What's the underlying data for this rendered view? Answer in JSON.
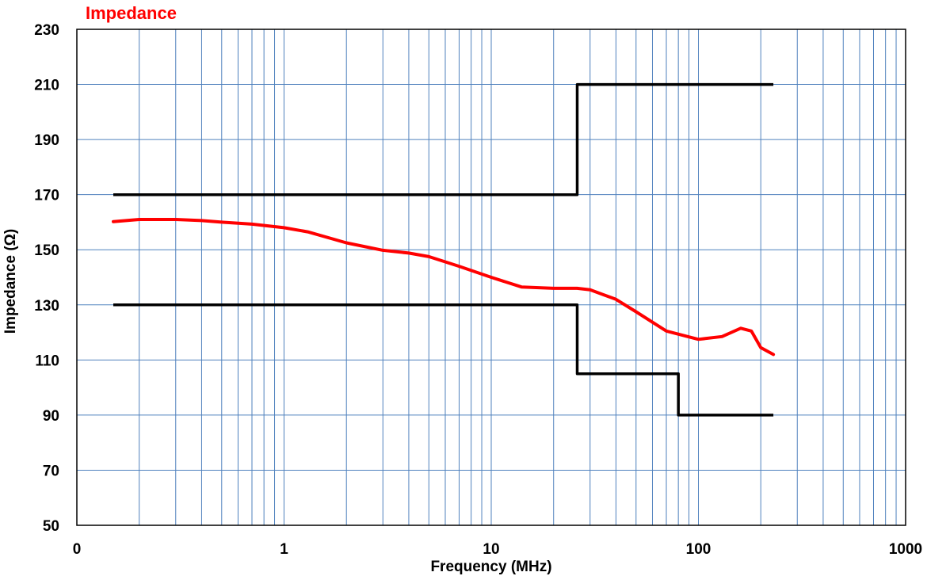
{
  "chart_data": {
    "type": "line",
    "title": "Impedance",
    "xlabel": "Frequency (MHz)",
    "ylabel": "Impedance (Ω)",
    "x_scale": "log",
    "xlim": [
      0.1,
      1000
    ],
    "ylim": [
      50,
      230
    ],
    "x_ticks": [
      0.1,
      1,
      10,
      100,
      1000
    ],
    "x_tick_labels": [
      "0",
      "1",
      "10",
      "100",
      "1000"
    ],
    "y_ticks": [
      50,
      70,
      90,
      110,
      130,
      150,
      170,
      190,
      210,
      230
    ],
    "y_tick_labels": [
      "50",
      "70",
      "90",
      "110",
      "130",
      "150",
      "170",
      "190",
      "210",
      "230"
    ],
    "grid": true,
    "colors": {
      "measured": "#ff0000",
      "limits": "#000000",
      "grid": "#4f81bd",
      "title": "#ff0000"
    },
    "series": [
      {
        "color": "#ff0000",
        "x": [
          0.15,
          0.2,
          0.3,
          0.4,
          0.5,
          0.7,
          1,
          1.3,
          2,
          3,
          4,
          5,
          7,
          10,
          14,
          20,
          26,
          30,
          40,
          50,
          70,
          100,
          130,
          160,
          180,
          200,
          230
        ],
        "y": [
          160.2,
          161,
          161,
          160.6,
          160,
          159.3,
          158,
          156.5,
          152.5,
          149.8,
          148.8,
          147.5,
          144,
          140,
          136.5,
          136,
          136,
          135.5,
          132,
          127.5,
          120.5,
          117.5,
          118.5,
          121.5,
          120.5,
          114.5,
          112
        ]
      },
      {
        "color": "#000000",
        "x": [
          0.15,
          26,
          26,
          230
        ],
        "y": [
          170,
          170,
          210,
          210
        ]
      },
      {
        "color": "#000000",
        "x": [
          0.15,
          26,
          26,
          80,
          80,
          230
        ],
        "y": [
          130,
          130,
          105,
          105,
          90,
          90
        ]
      }
    ]
  }
}
